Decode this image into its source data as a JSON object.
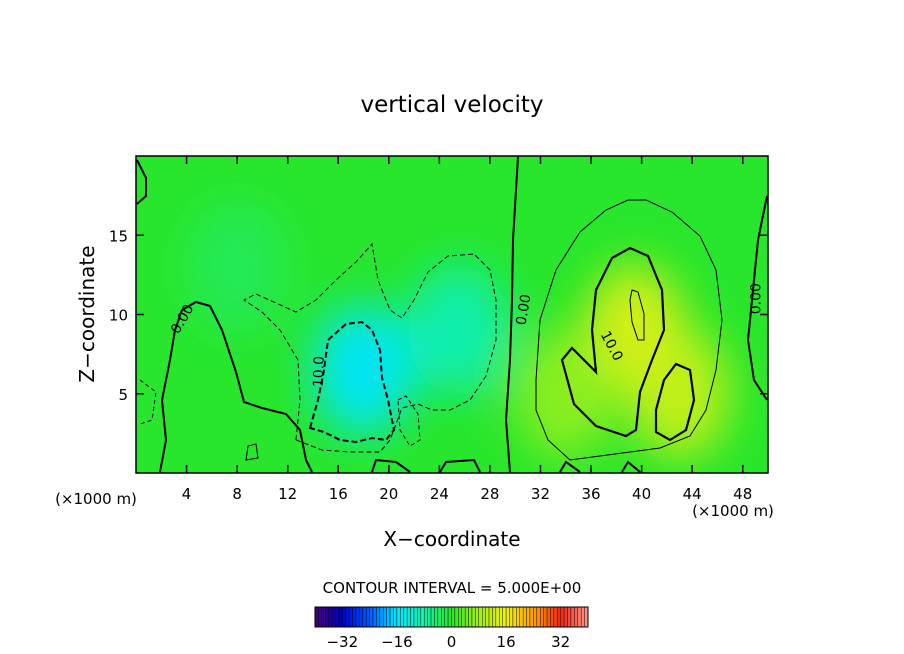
{
  "chart_data": {
    "type": "heatmap",
    "title": "vertical velocity",
    "xlabel": "X−coordinate",
    "ylabel": "Z−coordinate",
    "x_unit_left": "(×1000 m)",
    "x_unit_right": "(×1000 m)",
    "xlim": [
      0,
      50
    ],
    "ylim": [
      0,
      20
    ],
    "x_ticks": [
      4,
      8,
      12,
      16,
      20,
      24,
      28,
      32,
      36,
      40,
      44,
      48
    ],
    "y_ticks": [
      5,
      10,
      15
    ],
    "contour_labels": [
      {
        "text": "0.00",
        "x": 3.7,
        "z": 9.7,
        "angle": -60
      },
      {
        "text": "10.0",
        "x": 14.5,
        "z": 6.4,
        "angle": -88
      },
      {
        "text": "0.00",
        "x": 30.7,
        "z": 10.3,
        "angle": -80
      },
      {
        "text": "10.0",
        "x": 37.6,
        "z": 8.0,
        "angle": 62
      },
      {
        "text": "0.00",
        "x": 49.1,
        "z": 11.0,
        "angle": -90
      }
    ],
    "contour_interval_text": "CONTOUR INTERVAL = 5.000E+00",
    "colorbar": {
      "range": [
        -40,
        40
      ],
      "ticks": [
        -32,
        -16,
        0,
        16,
        32
      ],
      "tick_labels": [
        "−32",
        "−16",
        "0",
        "16",
        "32"
      ]
    },
    "cells": [
      {
        "x": 18,
        "z": 6.5,
        "value": -16
      },
      {
        "x": 25.5,
        "z": 9,
        "value": -9
      },
      {
        "x": 8,
        "z": 13,
        "value": -3
      },
      {
        "x": 39.5,
        "z": 9,
        "value": 14
      },
      {
        "x": 43,
        "z": 5,
        "value": 12
      },
      {
        "x": 34,
        "z": 5,
        "value": 7
      }
    ]
  },
  "colors": {
    "background_field": "#28e62c",
    "contour": "#000000"
  }
}
